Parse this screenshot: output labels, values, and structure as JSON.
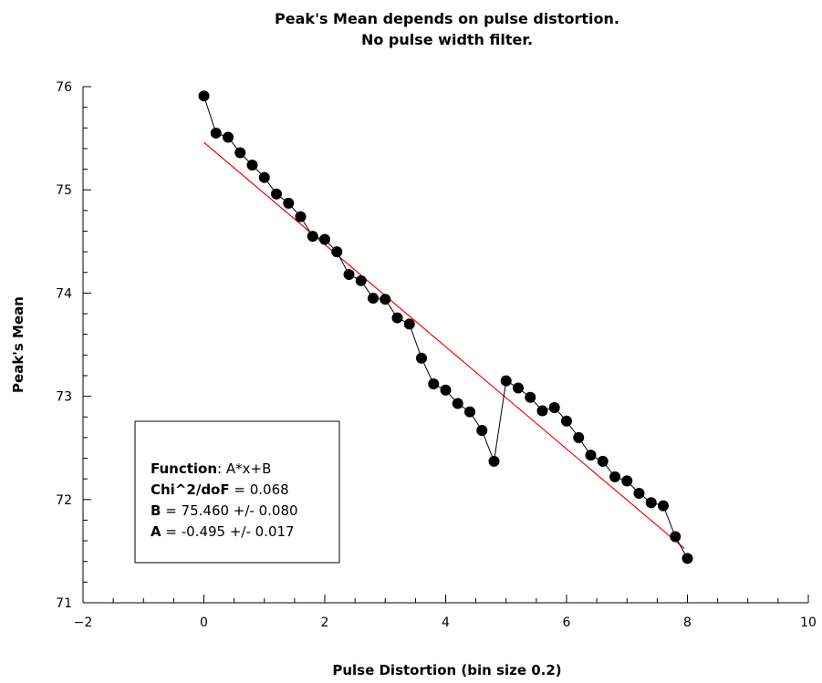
{
  "chart_data": {
    "type": "scatter",
    "title": [
      "Peak's Mean depends on pulse distortion.",
      "No pulse width filter."
    ],
    "x_label": "Pulse Distortion (bin size 0.2)",
    "y_label": "Peak's Mean",
    "xlim": [
      -2,
      10
    ],
    "ylim": [
      71,
      76
    ],
    "xticks": [
      {
        "value": -2,
        "label": "−2"
      },
      0,
      2,
      4,
      6,
      8,
      10
    ],
    "yticks": [
      71,
      72,
      73,
      74,
      75,
      76
    ],
    "x_minor_divisions": 4,
    "y_minor_divisions": 5,
    "series": [
      {
        "color": "#000000",
        "x": [
          0,
          0.2,
          0.4,
          0.6,
          0.8,
          1.0,
          1.2,
          1.4,
          1.6,
          1.8,
          2.0,
          2.2,
          2.4,
          2.6,
          2.8,
          3.0,
          3.2,
          3.4,
          3.6,
          3.8,
          4.0,
          4.2,
          4.4,
          4.6,
          4.8,
          5.0,
          5.2,
          5.4,
          5.6,
          5.8,
          6.0,
          6.2,
          6.4,
          6.6,
          6.8,
          7.0,
          7.2,
          7.4,
          7.6,
          7.8,
          8.0
        ],
        "values": [
          75.91,
          75.55,
          75.51,
          75.36,
          75.24,
          75.12,
          74.96,
          74.87,
          74.74,
          74.55,
          74.52,
          74.4,
          74.18,
          74.12,
          73.95,
          73.94,
          73.76,
          73.7,
          73.37,
          73.12,
          73.06,
          72.93,
          72.85,
          72.67,
          72.37,
          73.15,
          73.08,
          72.99,
          72.86,
          72.89,
          72.76,
          72.6,
          72.43,
          72.37,
          72.22,
          72.18,
          72.06,
          71.97,
          71.94,
          71.64,
          71.43
        ]
      }
    ],
    "fit": {
      "color": "#ff0000",
      "x": [
        0,
        7.95
      ],
      "values": [
        75.46,
        71.525
      ]
    },
    "annotation": [
      {
        "label": "Function",
        "text": ": A*x+B"
      },
      {
        "label": "Chi^2/doF",
        "text": " = 0.068"
      },
      {
        "label": "B",
        "text": " = 75.460 +/- 0.080"
      },
      {
        "label": "A",
        "text": " = -0.495 +/- 0.017"
      }
    ]
  }
}
